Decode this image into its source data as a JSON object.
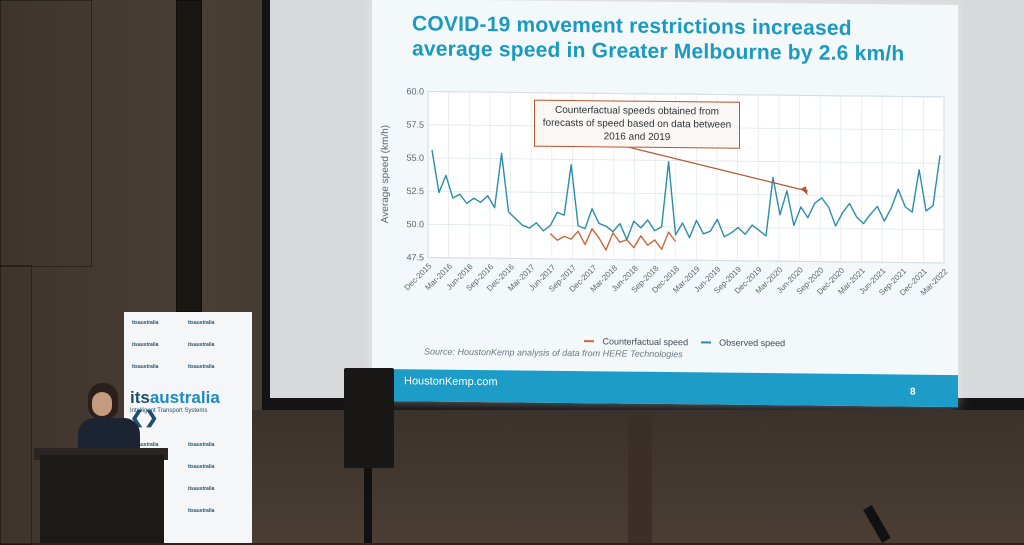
{
  "slide": {
    "title_line1": "COVID-19 movement restrictions increased",
    "title_line2": "average speed in Greater Melbourne by 2.6 km/h",
    "callout": "Counterfactual speeds obtained from forecasts of speed based on data between 2016 and 2019",
    "source": "Source: HoustonKemp analysis of data from HERE Technologies",
    "footer_brand": "HoustonKemp.com",
    "page_number": "8",
    "accent_color": "#1c9cc7"
  },
  "chart_data": {
    "type": "line",
    "ylabel": "Average speed (km/h)",
    "ylim": [
      47.5,
      60.0
    ],
    "yticks": [
      "60.0",
      "57.5",
      "55.0",
      "52.5",
      "50.0",
      "47.5"
    ],
    "x_ticks": [
      "Dec-2015",
      "Mar-2016",
      "Jun-2016",
      "Sep-2016",
      "Dec-2016",
      "Mar-2017",
      "Jun-2017",
      "Sep-2017",
      "Dec-2017",
      "Mar-2018",
      "Jun-2018",
      "Sep-2018",
      "Dec-2018",
      "Mar-2019",
      "Jun-2019",
      "Sep-2019",
      "Dec-2019",
      "Mar-2020",
      "Jun-2020",
      "Sep-2020",
      "Dec-2020",
      "Mar-2021",
      "Jun-2021",
      "Sep-2021",
      "Dec-2021",
      "Mar-2022"
    ],
    "grid": true,
    "legend_position": "bottom",
    "series": [
      {
        "name": "Counterfactual speed",
        "color": "#c8683c",
        "start_index": 17,
        "values": [
          49.4,
          48.9,
          49.2,
          49.0,
          49.6,
          48.6,
          49.8,
          49.1,
          48.2,
          49.5,
          48.8,
          49.0,
          48.4,
          49.3,
          48.6,
          49.0,
          48.3,
          49.6,
          48.9
        ]
      },
      {
        "name": "Observed speed",
        "color": "#2a8ea8",
        "start_index": 0,
        "values": [
          55.6,
          52.4,
          53.7,
          52.0,
          52.3,
          51.6,
          52.0,
          51.7,
          52.2,
          51.3,
          55.4,
          51.0,
          50.5,
          50.0,
          49.8,
          50.2,
          49.6,
          50.0,
          51.0,
          50.8,
          54.6,
          50.0,
          49.8,
          51.3,
          50.2,
          50.0,
          49.6,
          50.2,
          49.0,
          50.4,
          49.9,
          50.5,
          49.7,
          50.0,
          54.9,
          49.4,
          50.3,
          49.2,
          50.5,
          49.5,
          49.7,
          50.6,
          49.3,
          49.6,
          50.0,
          49.5,
          50.2,
          49.8,
          49.4,
          53.8,
          51.0,
          52.8,
          50.2,
          51.6,
          50.8,
          51.9,
          52.3,
          51.6,
          50.2,
          51.2,
          51.9,
          50.9,
          50.4,
          51.1,
          51.7,
          50.6,
          51.6,
          53.0,
          51.7,
          51.3,
          54.5,
          51.4,
          51.8,
          55.6
        ]
      }
    ]
  }
}
